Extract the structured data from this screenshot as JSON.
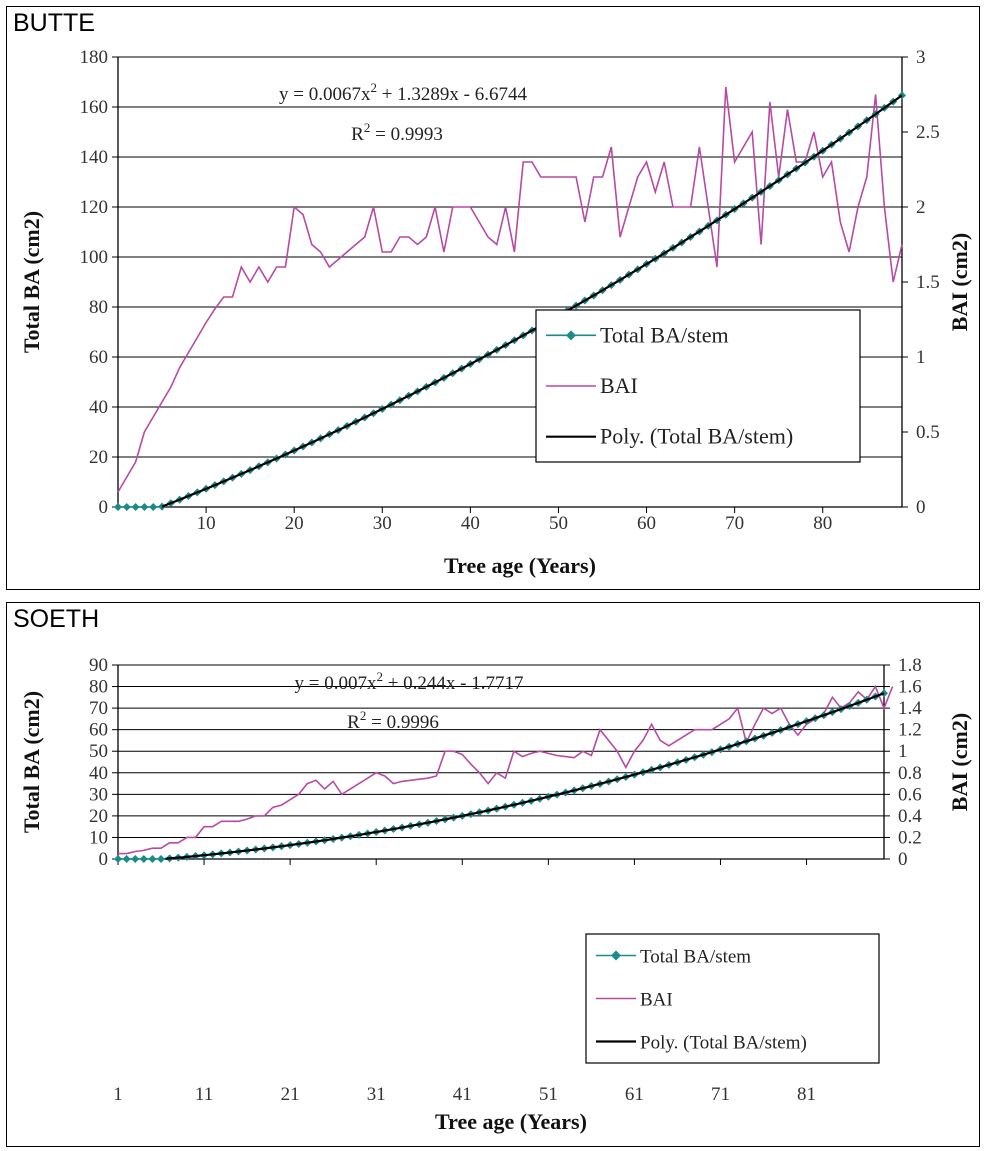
{
  "chart_data": [
    {
      "id": "butte",
      "type": "line",
      "title": "BUTTE",
      "xlabel": "Tree age (Years)",
      "ylabel": "Total BA (cm2)",
      "y2label": "BAI (cm2)",
      "xlim": [
        0,
        89
      ],
      "ylim": [
        0,
        180
      ],
      "y2lim": [
        0,
        3
      ],
      "x_ticks": [
        "10",
        "20",
        "30",
        "40",
        "50",
        "60",
        "70",
        "80"
      ],
      "x_tick_values": [
        10,
        20,
        30,
        40,
        50,
        60,
        70,
        80
      ],
      "y_ticks": [
        "0",
        "20",
        "40",
        "60",
        "80",
        "100",
        "120",
        "140",
        "160",
        "180"
      ],
      "y2_ticks": [
        "0",
        "0.5",
        "1",
        "1.5",
        "2",
        "2.5",
        "3"
      ],
      "equation": "y = 0.0067x",
      "equation_rest": " + 1.3289x - 6.6744",
      "r2_label": "R",
      "r2_value": " = 0.9993",
      "superscript": "2",
      "fit": {
        "a": 0.0067,
        "b": 1.3289,
        "c": -6.6744
      },
      "legend": {
        "position": "lower-right",
        "entries": [
          "Total BA/stem",
          "BAI",
          "Poly. (Total BA/stem)"
        ]
      },
      "colors": {
        "total_ba": "#1a8a8a",
        "bai": "#b84aa4",
        "poly": "#000000"
      },
      "bai_x_start": 0,
      "bai": [
        0.1,
        0.2,
        0.3,
        0.5,
        0.6,
        0.7,
        0.8,
        0.93,
        1.03,
        1.13,
        1.23,
        1.32,
        1.4,
        1.4,
        1.6,
        1.5,
        1.6,
        1.5,
        1.6,
        1.6,
        2.0,
        1.95,
        1.75,
        1.7,
        1.6,
        1.65,
        1.7,
        1.75,
        1.8,
        2.0,
        1.7,
        1.7,
        1.8,
        1.8,
        1.75,
        1.8,
        2.0,
        1.7,
        2.0,
        2.0,
        2.0,
        1.9,
        1.8,
        1.75,
        2.0,
        1.7,
        2.3,
        2.3,
        2.2,
        2.2,
        2.2,
        2.2,
        2.2,
        1.9,
        2.2,
        2.2,
        2.4,
        1.8,
        2.0,
        2.2,
        2.3,
        2.1,
        2.3,
        2.0,
        2.0,
        2.0,
        2.4,
        2.0,
        1.6,
        2.8,
        2.3,
        2.4,
        2.5,
        1.75,
        2.7,
        2.2,
        2.65,
        2.3,
        2.3,
        2.5,
        2.2,
        2.3,
        1.9,
        1.7,
        2.0,
        2.2,
        2.75,
        2.0,
        1.5,
        1.75
      ]
    },
    {
      "id": "soeth",
      "type": "line",
      "title": "SOETH",
      "xlabel": "Tree age (Years)",
      "ylabel": "Total BA (cm2)",
      "y2label": "BAI (cm2)",
      "xlim": [
        1,
        90
      ],
      "ylim": [
        0,
        90
      ],
      "y2lim": [
        0,
        1.8
      ],
      "x_ticks": [
        "1",
        "11",
        "21",
        "31",
        "41",
        "51",
        "61",
        "71",
        "81"
      ],
      "x_tick_values": [
        1,
        11,
        21,
        31,
        41,
        51,
        61,
        71,
        81
      ],
      "y_ticks": [
        "0",
        "10",
        "20",
        "30",
        "40",
        "50",
        "60",
        "70",
        "80",
        "90"
      ],
      "y2_ticks": [
        "0",
        "0.2",
        "0.4",
        "0.6",
        "0.8",
        "1",
        "1.2",
        "1.4",
        "1.6",
        "1.8"
      ],
      "equation": "y = 0.007x",
      "equation_rest": " + 0.244x - 1.7717",
      "r2_label": "R",
      "r2_value": " = 0.9996",
      "superscript": "2",
      "fit": {
        "a": 0.007,
        "b": 0.244,
        "c": -1.7717
      },
      "legend": {
        "position": "lower-right",
        "entries": [
          "Total BA/stem",
          "BAI",
          "Poly. (Total BA/stem)"
        ]
      },
      "colors": {
        "total_ba": "#1a8a8a",
        "bai": "#b84aa4",
        "poly": "#000000"
      },
      "bai_x_start": 1,
      "bai": [
        0.05,
        0.05,
        0.07,
        0.08,
        0.1,
        0.1,
        0.15,
        0.15,
        0.2,
        0.2,
        0.3,
        0.3,
        0.35,
        0.35,
        0.35,
        0.37,
        0.4,
        0.4,
        0.48,
        0.5,
        0.55,
        0.6,
        0.7,
        0.73,
        0.65,
        0.72,
        0.6,
        0.65,
        0.7,
        0.75,
        0.8,
        0.77,
        0.7,
        0.72,
        0.73,
        0.74,
        0.75,
        0.77,
        1.0,
        1.0,
        0.97,
        0.88,
        0.8,
        0.7,
        0.8,
        0.75,
        1.0,
        0.95,
        0.98,
        1.0,
        0.98,
        0.96,
        0.95,
        0.94,
        1.0,
        0.96,
        1.2,
        1.1,
        1.0,
        0.85,
        1.0,
        1.1,
        1.25,
        1.1,
        1.05,
        1.1,
        1.15,
        1.2,
        1.2,
        1.2,
        1.25,
        1.3,
        1.4,
        1.08,
        1.25,
        1.4,
        1.35,
        1.4,
        1.25,
        1.15,
        1.25,
        1.3,
        1.35,
        1.5,
        1.4,
        1.45,
        1.55,
        1.48,
        1.6,
        1.4,
        1.6
      ]
    }
  ]
}
